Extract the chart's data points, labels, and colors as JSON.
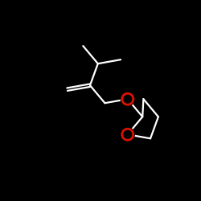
{
  "background": "#000000",
  "bond_color": "#ffffff",
  "oxygen_color": "#dd1100",
  "bond_lw": 1.6,
  "o_circle_r": 0.028,
  "o_lw": 2.0,
  "figsize": [
    2.5,
    2.5
  ],
  "dpi": 100,
  "xlim": [
    0,
    1
  ],
  "ylim": [
    0,
    1
  ]
}
